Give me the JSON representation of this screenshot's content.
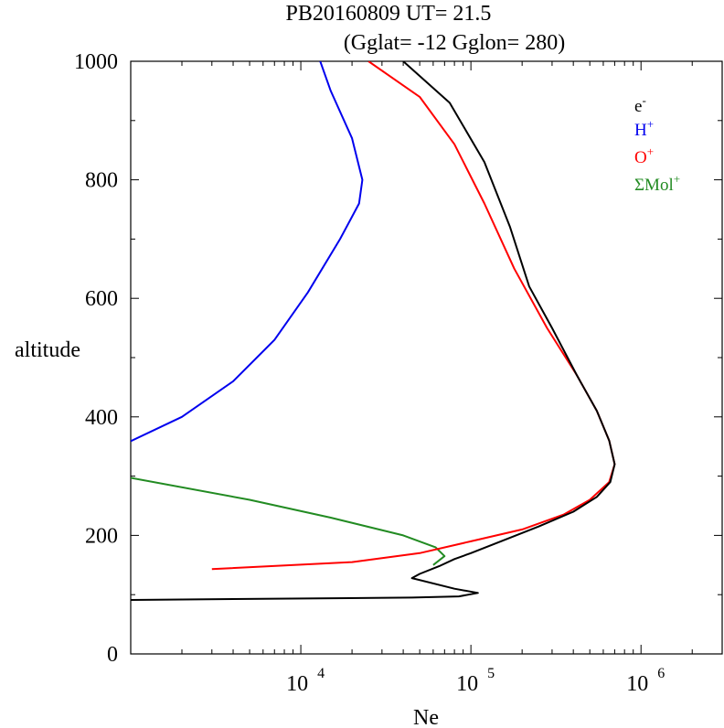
{
  "chart_data": {
    "type": "line",
    "title": "PB20160809   UT=  21.5",
    "subtitle": "(Gglat= -12   Gglon=  280)",
    "xlabel": "Ne",
    "ylabel": "altitude",
    "x_scale": "log",
    "xlim": [
      1000,
      3000000
    ],
    "ylim": [
      0,
      1000
    ],
    "x_ticks": [
      {
        "base": "10",
        "exp": "4",
        "value": 10000
      },
      {
        "base": "10",
        "exp": "5",
        "value": 100000
      },
      {
        "base": "10",
        "exp": "6",
        "value": 1000000
      }
    ],
    "y_ticks": [
      "0",
      "200",
      "400",
      "600",
      "800",
      "1000"
    ],
    "y_tick_values": [
      0,
      200,
      400,
      600,
      800,
      1000
    ],
    "legend_position": "top-right",
    "series": [
      {
        "name": "e",
        "sup": "-",
        "color": "#000000",
        "points": [
          [
            1000,
            91
          ],
          [
            45000,
            95
          ],
          [
            85000,
            97
          ],
          [
            110000,
            103
          ],
          [
            80000,
            110
          ],
          [
            45000,
            128
          ],
          [
            50000,
            135
          ],
          [
            65000,
            148
          ],
          [
            80000,
            160
          ],
          [
            100000,
            170
          ],
          [
            150000,
            190
          ],
          [
            250000,
            215
          ],
          [
            400000,
            240
          ],
          [
            550000,
            265
          ],
          [
            660000,
            290
          ],
          [
            700000,
            320
          ],
          [
            650000,
            360
          ],
          [
            550000,
            410
          ],
          [
            420000,
            470
          ],
          [
            300000,
            550
          ],
          [
            220000,
            620
          ],
          [
            170000,
            720
          ],
          [
            120000,
            830
          ],
          [
            75000,
            930
          ],
          [
            40000,
            1000
          ]
        ]
      },
      {
        "name": "H",
        "sup": "+",
        "color": "#0000ee",
        "points": [
          [
            1000,
            359
          ],
          [
            2000,
            400
          ],
          [
            4000,
            460
          ],
          [
            7000,
            530
          ],
          [
            11000,
            610
          ],
          [
            17000,
            700
          ],
          [
            22000,
            760
          ],
          [
            23000,
            800
          ],
          [
            20000,
            870
          ],
          [
            15000,
            950
          ],
          [
            13000,
            1000
          ]
        ]
      },
      {
        "name": "O",
        "sup": "+",
        "color": "#ff0000",
        "points": [
          [
            3000,
            143
          ],
          [
            20000,
            155
          ],
          [
            50000,
            170
          ],
          [
            100000,
            190
          ],
          [
            200000,
            210
          ],
          [
            350000,
            235
          ],
          [
            500000,
            260
          ],
          [
            650000,
            290
          ],
          [
            700000,
            320
          ],
          [
            650000,
            360
          ],
          [
            550000,
            410
          ],
          [
            420000,
            470
          ],
          [
            280000,
            550
          ],
          [
            180000,
            650
          ],
          [
            120000,
            760
          ],
          [
            80000,
            860
          ],
          [
            50000,
            940
          ],
          [
            25000,
            1000
          ]
        ]
      },
      {
        "name": "ΣMol",
        "sup": "+",
        "color": "#228b22",
        "points": [
          [
            1000,
            297
          ],
          [
            5000,
            260
          ],
          [
            15000,
            230
          ],
          [
            40000,
            200
          ],
          [
            62000,
            180
          ],
          [
            70000,
            165
          ],
          [
            60000,
            150
          ]
        ]
      }
    ]
  }
}
